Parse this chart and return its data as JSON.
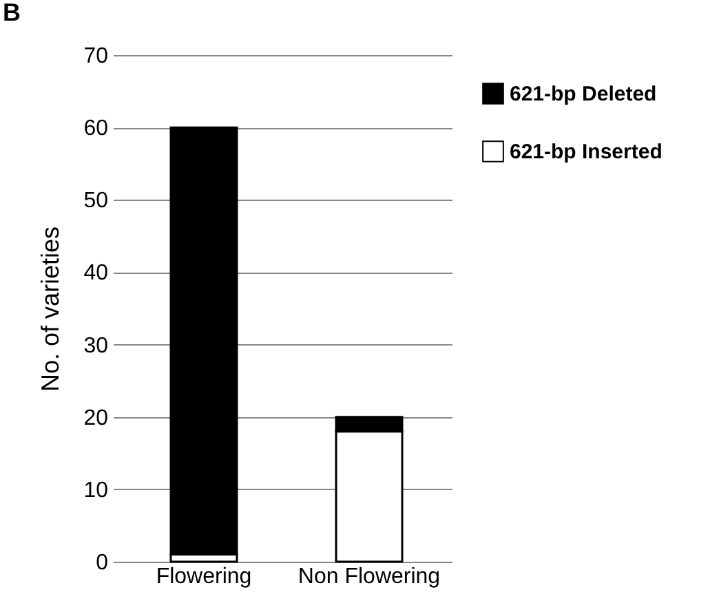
{
  "chart_data": {
    "type": "bar",
    "ylabel": "No. of varieties",
    "categories": [
      "Flowering",
      "Non Flowering"
    ],
    "series": [
      {
        "name": "621-bp Inserted",
        "color": "#ffffff",
        "values": [
          1,
          18
        ]
      },
      {
        "name": "621-bp Deleted",
        "color": "#000000",
        "values": [
          59,
          2
        ]
      }
    ],
    "stacked": true,
    "ylim": [
      0,
      70
    ],
    "yticks": [
      0,
      10,
      20,
      30,
      40,
      50,
      60,
      70
    ],
    "grid": "y",
    "legend": "right",
    "annotations": [
      "B"
    ]
  }
}
